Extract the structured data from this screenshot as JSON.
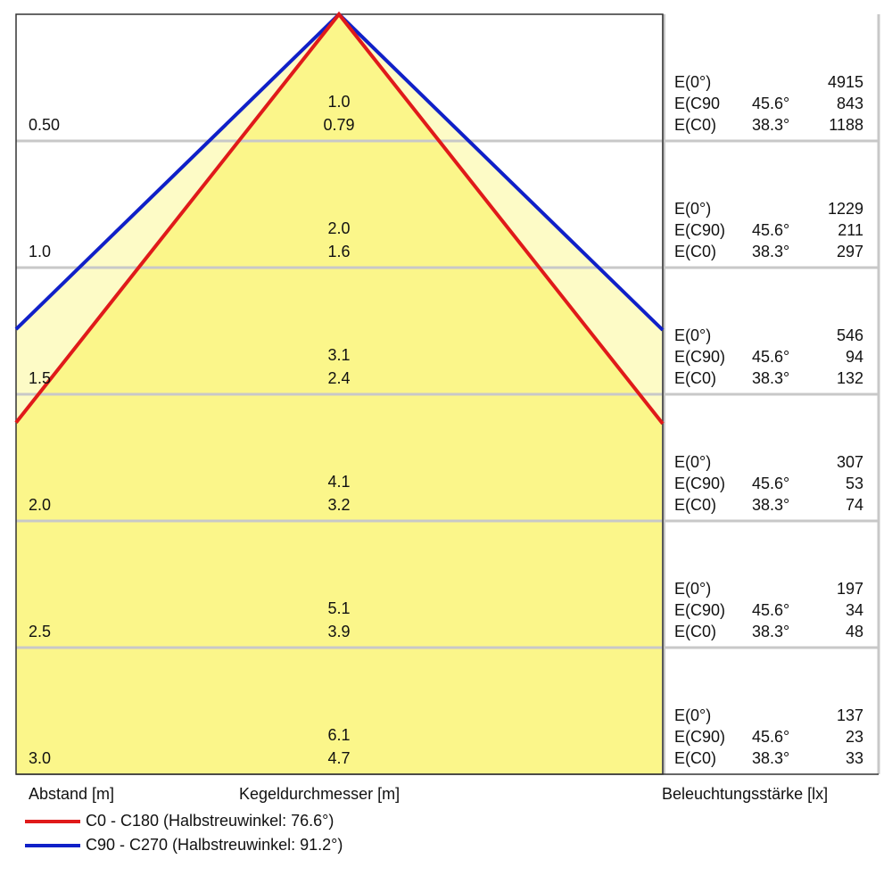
{
  "footer": {
    "distance_label": "Abstand [m]",
    "diameter_label": "Kegeldurchmesser [m]",
    "illuminance_label": "Beleuchtungsstärke [lx]"
  },
  "legend": [
    {
      "label": "C0 - C180 (Halbstreuwinkel: 76.6°)",
      "color": "#e01a1a"
    },
    {
      "label": "C90 - C270 (Halbstreuwinkel: 91.2°)",
      "color": "#1020c8"
    }
  ],
  "colors": {
    "fill_c0": "#fbf68a",
    "fill_c90": "#fdfbc6",
    "grid": "#c8c8c8",
    "frame": "#333333"
  },
  "chart_data": {
    "type": "table",
    "max_distance": 3.0,
    "half_angle_c0_deg": 38.3,
    "half_angle_c90_deg": 45.6,
    "rows": [
      {
        "distance": "0.50",
        "diameter_c90": "1.0",
        "diameter_c0": "0.79",
        "e0_label": "E(0°)",
        "e0": "4915",
        "ec90_label": "E(C90",
        "ec90_angle": "45.6°",
        "ec90": "843",
        "ec0_label": "E(C0)",
        "ec0_angle": "38.3°",
        "ec0": "1188"
      },
      {
        "distance": "1.0",
        "diameter_c90": "2.0",
        "diameter_c0": "1.6",
        "e0_label": "E(0°)",
        "e0": "1229",
        "ec90_label": "E(C90)",
        "ec90_angle": "45.6°",
        "ec90": "211",
        "ec0_label": "E(C0)",
        "ec0_angle": "38.3°",
        "ec0": "297"
      },
      {
        "distance": "1.5",
        "diameter_c90": "3.1",
        "diameter_c0": "2.4",
        "e0_label": "E(0°)",
        "e0": "546",
        "ec90_label": "E(C90)",
        "ec90_angle": "45.6°",
        "ec90": "94",
        "ec0_label": "E(C0)",
        "ec0_angle": "38.3°",
        "ec0": "132"
      },
      {
        "distance": "2.0",
        "diameter_c90": "4.1",
        "diameter_c0": "3.2",
        "e0_label": "E(0°)",
        "e0": "307",
        "ec90_label": "E(C90)",
        "ec90_angle": "45.6°",
        "ec90": "53",
        "ec0_label": "E(C0)",
        "ec0_angle": "38.3°",
        "ec0": "74"
      },
      {
        "distance": "2.5",
        "diameter_c90": "5.1",
        "diameter_c0": "3.9",
        "e0_label": "E(0°)",
        "e0": "197",
        "ec90_label": "E(C90)",
        "ec90_angle": "45.6°",
        "ec90": "34",
        "ec0_label": "E(C0)",
        "ec0_angle": "38.3°",
        "ec0": "48"
      },
      {
        "distance": "3.0",
        "diameter_c90": "6.1",
        "diameter_c0": "4.7",
        "e0_label": "E(0°)",
        "e0": "137",
        "ec90_label": "E(C90)",
        "ec90_angle": "45.6°",
        "ec90": "23",
        "ec0_label": "E(C0)",
        "ec0_angle": "38.3°",
        "ec0": "33"
      }
    ]
  }
}
